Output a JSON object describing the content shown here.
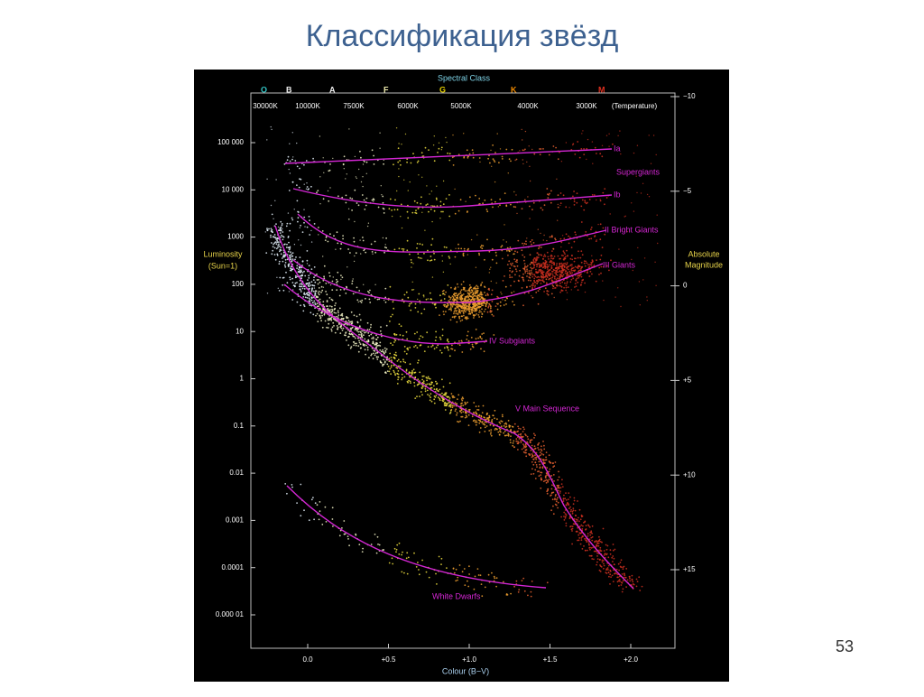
{
  "slide": {
    "title": "Классификация звёзд",
    "page_number": "53"
  },
  "diagram": {
    "top_title": "Spectral Class",
    "spectral_classes": [
      "O",
      "B",
      "A",
      "F",
      "G",
      "K",
      "M"
    ],
    "temperatures": [
      "30000K",
      "10000K",
      "7500K",
      "6000K",
      "5000K",
      "4000K",
      "3000K",
      "(Temperature)"
    ],
    "left_axis": {
      "label": [
        "Luminosity",
        "(Sun=1)"
      ],
      "ticks": [
        "100 000",
        "10 000",
        "1000",
        "100",
        "10",
        "1",
        "0.1",
        "0.01",
        "0.001",
        "0.0001",
        "0.000 01"
      ]
    },
    "right_axis": {
      "label": [
        "Absolute",
        "Magnitude"
      ],
      "ticks": [
        "−10",
        "−5",
        "0",
        "+5",
        "+10",
        "+15"
      ]
    },
    "bottom_axis": {
      "label": "Colour (B−V)",
      "ticks": [
        "0.0",
        "+0.5",
        "+1.0",
        "+1.5",
        "+2.0"
      ]
    },
    "curve_labels": [
      "Ia",
      "Supergiants",
      "Ib",
      "II Bright Giants",
      "III    Giants",
      "IV Subgiants",
      "V  Main Sequence",
      "White Dwarfs"
    ]
  }
}
